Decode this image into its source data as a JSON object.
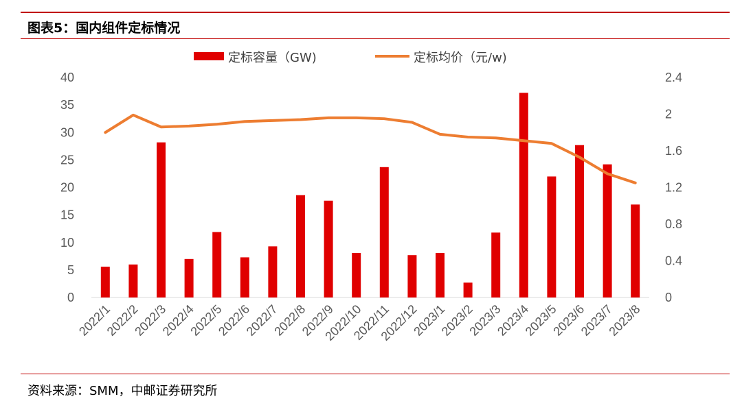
{
  "figure": {
    "title": "图表5：国内组件定标情况",
    "source": "资料来源：SMM，中邮证券研究所"
  },
  "colors": {
    "bar": "#e00000",
    "line": "#ed7d31",
    "rule": "#c00000"
  },
  "chart_data": {
    "type": "bar+line",
    "categories": [
      "2022/1",
      "2022/2",
      "2022/3",
      "2022/4",
      "2022/5",
      "2022/6",
      "2022/7",
      "2022/8",
      "2022/9",
      "2022/10",
      "2022/11",
      "2022/12",
      "2023/1",
      "2023/2",
      "2023/3",
      "2023/4",
      "2023/5",
      "2023/6",
      "2023/7",
      "2023/8"
    ],
    "series": [
      {
        "name": "定标容量（GW)",
        "kind": "bar",
        "axis": "left",
        "values": [
          5.6,
          6.0,
          28.2,
          7.0,
          11.9,
          7.3,
          9.3,
          18.6,
          17.6,
          8.1,
          23.7,
          7.7,
          8.1,
          2.7,
          11.8,
          37.2,
          22.0,
          27.7,
          24.2,
          16.9
        ]
      },
      {
        "name": "定标均价（元/w)",
        "kind": "line",
        "axis": "right",
        "values": [
          1.8,
          1.99,
          1.86,
          1.87,
          1.89,
          1.92,
          1.93,
          1.94,
          1.96,
          1.96,
          1.95,
          1.91,
          1.78,
          1.75,
          1.74,
          1.71,
          1.68,
          1.53,
          1.35,
          1.25
        ]
      }
    ],
    "left_axis": {
      "min": 0,
      "max": 40,
      "ticks": [
        "0",
        "5",
        "10",
        "15",
        "20",
        "25",
        "30",
        "35",
        "40"
      ]
    },
    "right_axis": {
      "min": 0,
      "max": 2.4,
      "ticks": [
        "0",
        "0.4",
        "0.8",
        "1.2",
        "1.6",
        "2",
        "2.4"
      ]
    },
    "grid": false,
    "legend": "top-center"
  }
}
